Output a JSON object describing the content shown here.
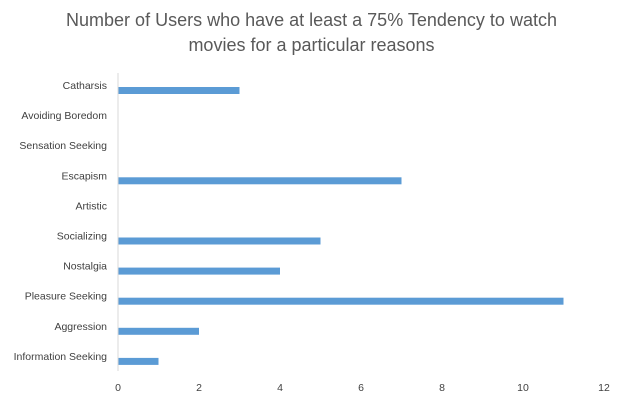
{
  "chart_data": {
    "type": "bar",
    "orientation": "horizontal",
    "title_lines": [
      "Number of Users who have at least a 75% Tendency to watch",
      "movies for a particular reasons"
    ],
    "categories": [
      "Catharsis",
      "Avoiding Boredom",
      "Sensation Seeking",
      "Escapism",
      "Artistic",
      "Socializing",
      "Nostalgia",
      "Pleasure Seeking",
      "Aggression",
      "Information Seeking"
    ],
    "values": [
      3,
      0,
      0,
      7,
      0,
      5,
      4,
      11,
      2,
      1
    ],
    "xlim": [
      0,
      12
    ],
    "xticks": [
      0,
      2,
      4,
      6,
      8,
      10,
      12
    ],
    "bar_color": "#5b9bd5",
    "grid": false,
    "legend": "none"
  }
}
